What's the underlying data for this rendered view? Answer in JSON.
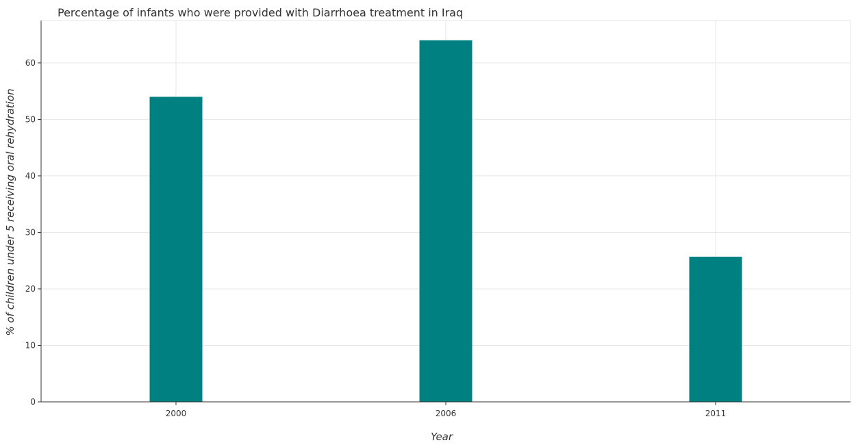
{
  "chart_data": {
    "type": "bar",
    "title": "Percentage of infants who were provided with Diarrhoea treatment in Iraq",
    "xlabel": "Year",
    "ylabel": "% of children under 5 receiving oral rehydration",
    "categories": [
      "2000",
      "2006",
      "2011"
    ],
    "values": [
      54,
      64,
      25.7
    ],
    "ylim": [
      0,
      67.5
    ],
    "yticks": [
      0,
      10,
      20,
      30,
      40,
      50,
      60
    ],
    "grid": true,
    "bar_color": "#008080"
  }
}
